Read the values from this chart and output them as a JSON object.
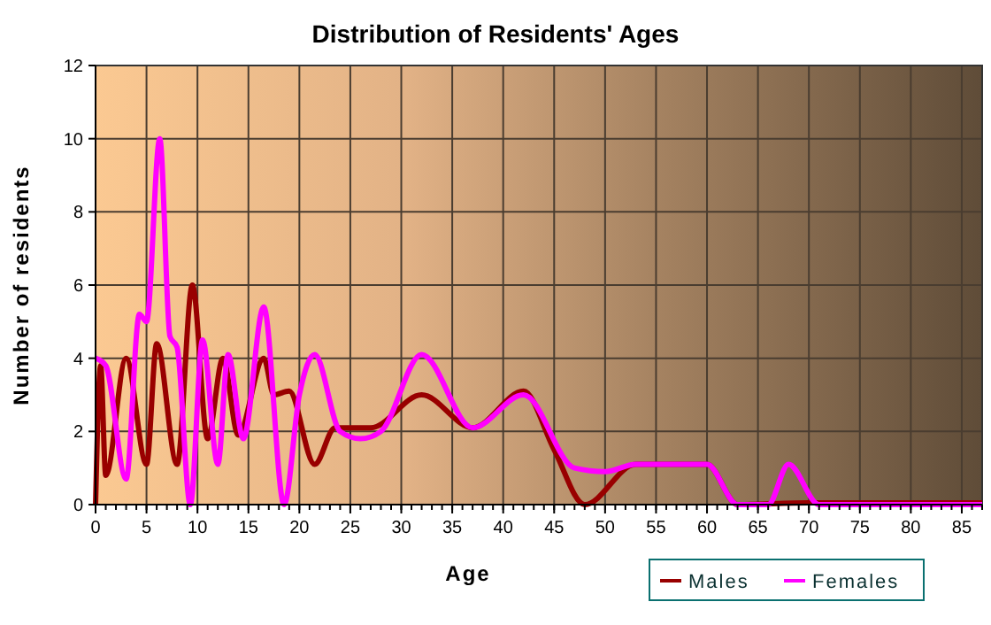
{
  "chart_data": {
    "type": "line",
    "title": "Distribution of Residents' Ages",
    "xlabel": "Age",
    "ylabel": "Number of residents",
    "xlim": [
      0,
      87
    ],
    "xticks": [
      0,
      5,
      10,
      15,
      20,
      25,
      30,
      35,
      40,
      45,
      50,
      55,
      60,
      65,
      70,
      75,
      80,
      85
    ],
    "ylim": [
      0,
      12
    ],
    "yticks": [
      0,
      2,
      4,
      6,
      8,
      10,
      12
    ],
    "grid": true,
    "legend": "bottom right",
    "line_style": "solid",
    "series": [
      {
        "name": "Males",
        "color": "#990000",
        "x": [
          0,
          0.5,
          1,
          3,
          5,
          6,
          8,
          9.5,
          11,
          12.5,
          14,
          16.5,
          17.5,
          19,
          21.5,
          23.5,
          27,
          32,
          37,
          42,
          45,
          48,
          53,
          58,
          60,
          63,
          70,
          87
        ],
        "values": [
          0,
          3.8,
          0.8,
          4,
          1.1,
          4.4,
          1.1,
          6,
          1.8,
          4,
          1.9,
          4,
          3,
          3.1,
          1.1,
          2.1,
          2.1,
          3,
          2.1,
          3.1,
          1.5,
          0,
          1.1,
          1.1,
          1.1,
          0,
          0.05,
          0.05
        ]
      },
      {
        "name": "Females",
        "color": "#ff00ff",
        "x": [
          0,
          1,
          3,
          4.3,
          5,
          6.3,
          7.3,
          8,
          9.3,
          10.5,
          12,
          13,
          14.5,
          16.5,
          18.5,
          20,
          21.5,
          24,
          26,
          28,
          32,
          37,
          42,
          47,
          50,
          53,
          60,
          63,
          66,
          68,
          71,
          87
        ],
        "values": [
          4,
          3.8,
          0.7,
          5.2,
          5,
          10,
          4.6,
          4.3,
          0,
          4.5,
          1.1,
          4.1,
          1.8,
          5.4,
          0,
          3,
          4.1,
          2,
          1.8,
          2,
          4.1,
          2.1,
          3,
          1,
          0.9,
          1.1,
          1.1,
          0,
          0,
          1.1,
          0,
          0
        ]
      }
    ]
  }
}
